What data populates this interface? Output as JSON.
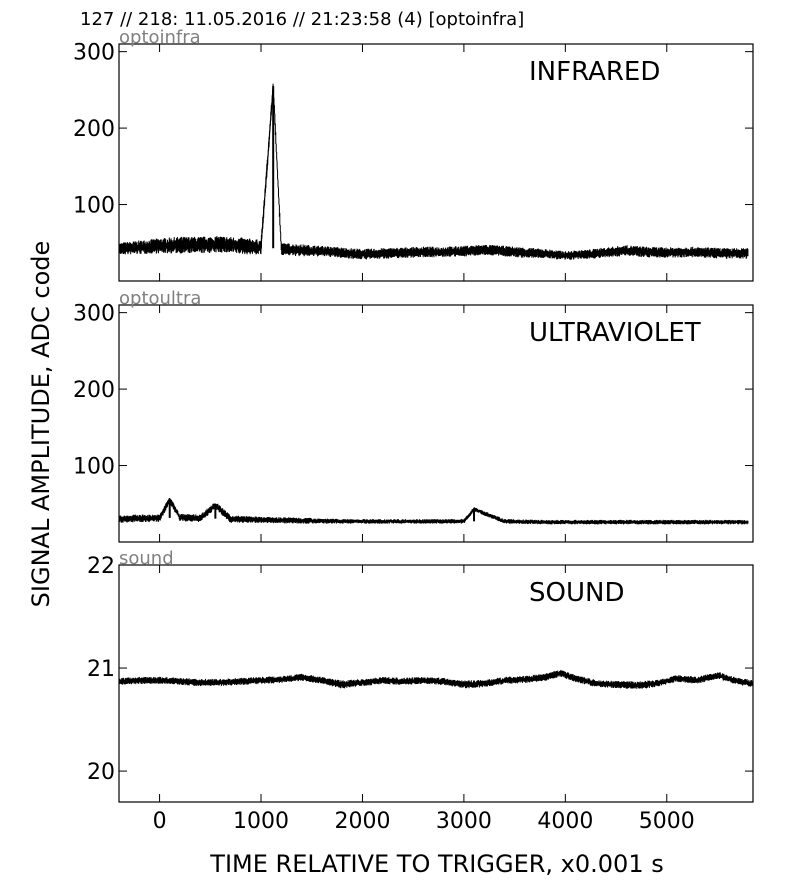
{
  "header": {
    "title": "127 // 218:   11.05.2016 // 21:23:58 (4)  [optoinfra]"
  },
  "ylabel": "SIGNAL AMPLITUDE,  ADC code",
  "xlabel": "TIME RELATIVE TO TRIGGER,   x0.001 s",
  "colors": {
    "trace": "#000000",
    "channel_label": "#808080",
    "frame": "#000000"
  },
  "chart_data": [
    {
      "type": "line",
      "channel": "optoinfra",
      "label": "INFRARED",
      "xlim": [
        -400,
        5850
      ],
      "ylim": [
        0,
        310
      ],
      "xticks": [
        0,
        1000,
        2000,
        3000,
        4000,
        5000
      ],
      "yticks": [
        100,
        200,
        300
      ],
      "series": [
        {
          "x": [
            -400,
            -200,
            0,
            200,
            400,
            600,
            800,
            1000,
            1120,
            1200,
            1400,
            1600,
            1800,
            2000,
            2200,
            2400,
            2600,
            2800,
            3000,
            3200,
            3400,
            3600,
            3800,
            4000,
            4200,
            4400,
            4600,
            4800,
            5000,
            5200,
            5400,
            5600,
            5800
          ],
          "y": [
            42,
            44,
            46,
            47,
            47,
            48,
            46,
            44,
            255,
            42,
            40,
            39,
            37,
            35,
            36,
            37,
            38,
            38,
            39,
            41,
            39,
            37,
            36,
            33,
            35,
            37,
            40,
            38,
            37,
            38,
            37,
            36,
            36
          ],
          "band": [
            8,
            9,
            10,
            11,
            11,
            11,
            11,
            10,
            8,
            8,
            8,
            7,
            7,
            7,
            7,
            7,
            7,
            7,
            7,
            7,
            7,
            7,
            6,
            6,
            6,
            7,
            7,
            7,
            7,
            7,
            7,
            7,
            7
          ]
        }
      ]
    },
    {
      "type": "line",
      "channel": "optoultra",
      "label": "ULTRAVIOLET",
      "xlim": [
        -400,
        5850
      ],
      "ylim": [
        0,
        310
      ],
      "xticks": [
        0,
        1000,
        2000,
        3000,
        4000,
        5000
      ],
      "yticks": [
        100,
        200,
        300
      ],
      "series": [
        {
          "x": [
            -400,
            -200,
            0,
            100,
            200,
            400,
            550,
            700,
            1000,
            1400,
            1800,
            2200,
            2600,
            3000,
            3100,
            3400,
            3800,
            4200,
            4600,
            5000,
            5400,
            5800
          ],
          "y": [
            30,
            31,
            31,
            55,
            32,
            31,
            48,
            30,
            29,
            28,
            27,
            27,
            27,
            27,
            43,
            27,
            26,
            26,
            26,
            26,
            26,
            26
          ],
          "band": [
            5,
            5,
            5,
            5,
            5,
            5,
            5,
            5,
            4,
            4,
            3,
            3,
            3,
            3,
            3,
            3,
            3,
            3,
            3,
            3,
            3,
            3
          ]
        }
      ]
    },
    {
      "type": "line",
      "channel": "sound",
      "label": "SOUND",
      "xlim": [
        -400,
        5850
      ],
      "ylim": [
        19.7,
        22
      ],
      "xticks": [
        0,
        1000,
        2000,
        3000,
        4000,
        5000
      ],
      "yticks": [
        20,
        21,
        22
      ],
      "series": [
        {
          "x": [
            -400,
            -200,
            0,
            200,
            400,
            600,
            800,
            1000,
            1200,
            1400,
            1600,
            1800,
            2000,
            2200,
            2400,
            2600,
            2800,
            3000,
            3200,
            3400,
            3600,
            3800,
            3950,
            4100,
            4300,
            4500,
            4700,
            4900,
            5100,
            5300,
            5500,
            5700,
            5850
          ],
          "y": [
            20.87,
            20.88,
            20.88,
            20.87,
            20.86,
            20.86,
            20.87,
            20.88,
            20.89,
            20.91,
            20.88,
            20.84,
            20.86,
            20.88,
            20.87,
            20.88,
            20.87,
            20.84,
            20.85,
            20.88,
            20.89,
            20.91,
            20.95,
            20.9,
            20.85,
            20.84,
            20.83,
            20.85,
            20.9,
            20.88,
            20.93,
            20.87,
            20.85
          ],
          "band": [
            0.035,
            0.035,
            0.035,
            0.035,
            0.035,
            0.035,
            0.035,
            0.035,
            0.035,
            0.035,
            0.035,
            0.04,
            0.035,
            0.035,
            0.035,
            0.035,
            0.035,
            0.04,
            0.035,
            0.035,
            0.035,
            0.035,
            0.035,
            0.035,
            0.035,
            0.035,
            0.04,
            0.035,
            0.035,
            0.035,
            0.035,
            0.035,
            0.035
          ]
        }
      ]
    }
  ]
}
